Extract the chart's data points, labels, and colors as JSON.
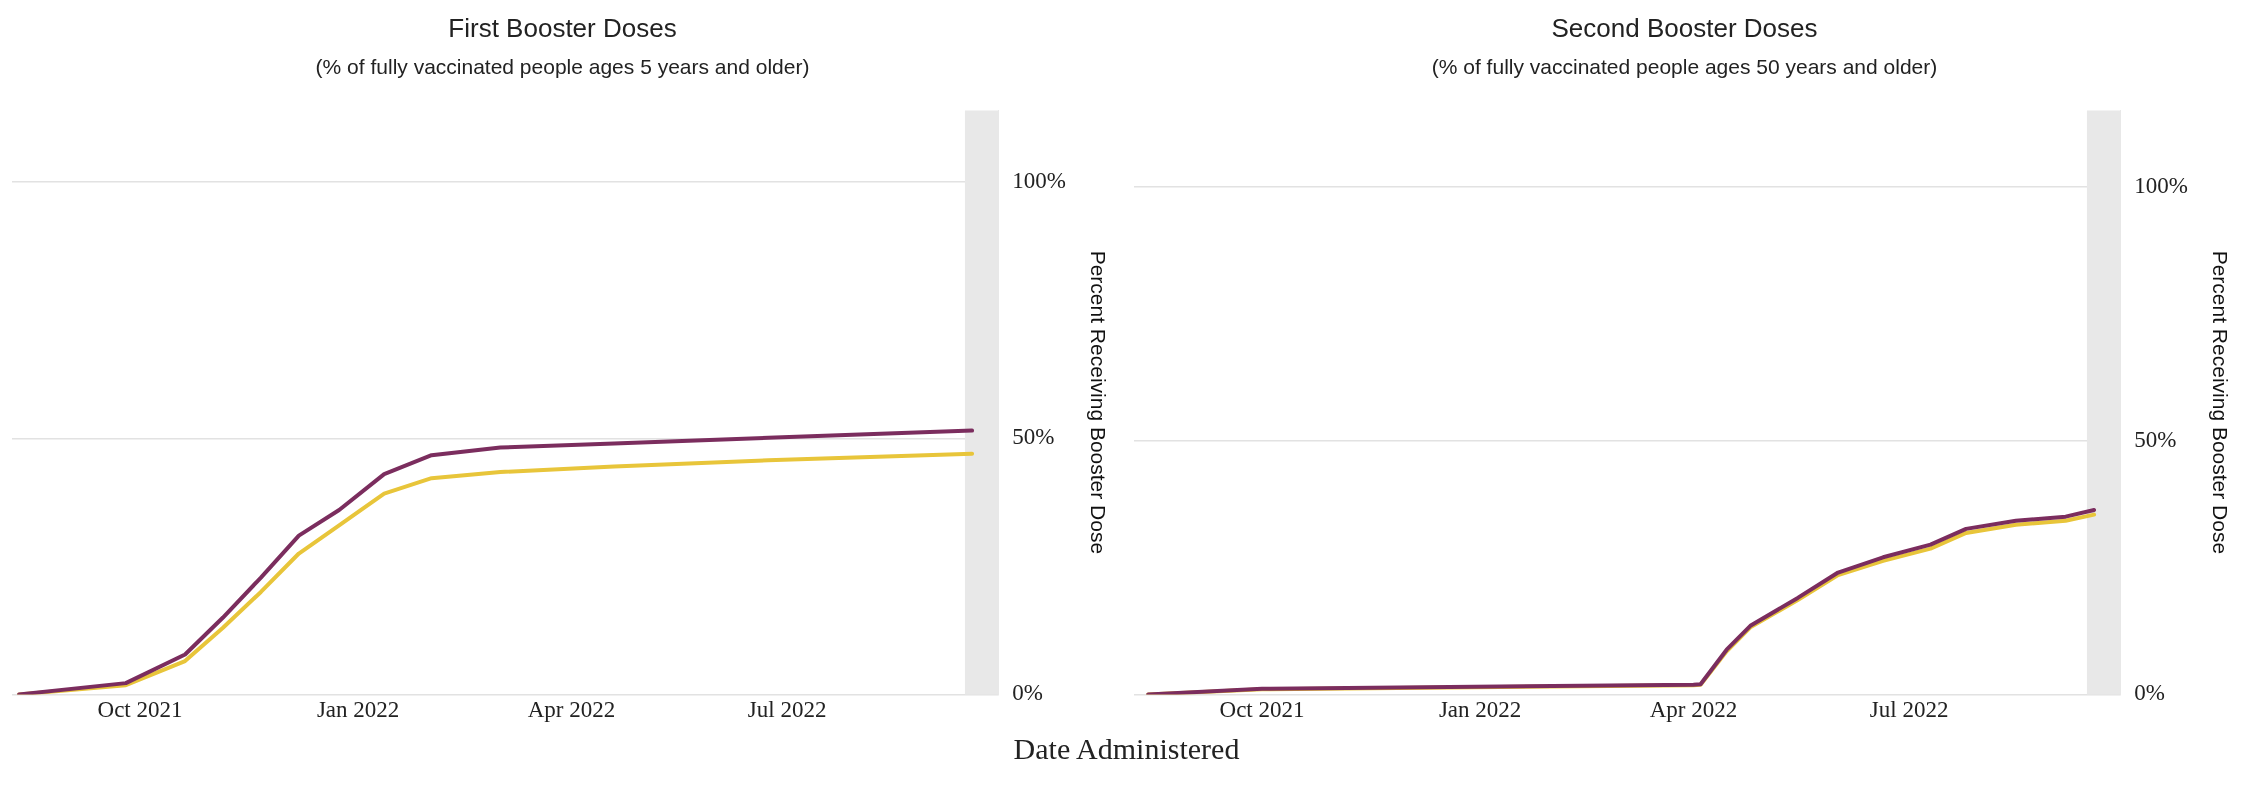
{
  "chart_data": [
    {
      "type": "line",
      "title": "First Booster Doses",
      "subtitle": "(% of fully vaccinated people ages 5 years and older)",
      "xlabel": "Date Administered",
      "ylabel": "Percent Receiving Booster Dose",
      "grid": "y",
      "legend": false,
      "marker": "none",
      "line_style": "solid",
      "xlim": [
        "2021-08-08",
        "2022-09-28"
      ],
      "xticks": [
        {
          "value": "2021-10-01",
          "label": "Oct 2021"
        },
        {
          "value": "2022-01-01",
          "label": "Jan 2022"
        },
        {
          "value": "2022-04-01",
          "label": "Apr 2022"
        },
        {
          "value": "2022-07-01",
          "label": "Jul 2022"
        }
      ],
      "ylim": [
        0,
        114
      ],
      "yticks": [
        {
          "value": 0,
          "label": "0%"
        },
        {
          "value": 50,
          "label": "50%"
        },
        {
          "value": 100,
          "label": "100%"
        }
      ],
      "bands": [
        {
          "axis": "x",
          "from": "2022-09-14",
          "to": "2022-09-28",
          "color": "#e8e8e8"
        }
      ],
      "x": [
        "2021-08-11",
        "2021-09-25",
        "2021-10-20",
        "2021-11-05",
        "2021-11-21",
        "2021-12-07",
        "2021-12-24",
        "2022-01-12",
        "2022-02-01",
        "2022-03-02",
        "2022-04-19",
        "2022-06-23",
        "2022-09-17"
      ],
      "series": [
        {
          "color": "#7b2d5e",
          "values": [
            0,
            2.2,
            7.8,
            15,
            22.8,
            31,
            36,
            43,
            46.7,
            48.2,
            49,
            50.1,
            51.5
          ]
        },
        {
          "color": "#e8c53a",
          "values": [
            0,
            1.8,
            6.5,
            13,
            20,
            27.5,
            33,
            39.2,
            42.2,
            43.4,
            44.5,
            45.7,
            47
          ]
        }
      ]
    },
    {
      "type": "line",
      "title": "Second Booster Doses",
      "subtitle": "(% of fully vaccinated people ages 50 years and older)",
      "ylabel": "Percent Receiving Booster Dose",
      "grid": "y",
      "legend": false,
      "marker": "none",
      "line_style": "solid",
      "xlim": [
        "2021-08-08",
        "2022-09-28"
      ],
      "xticks": [
        {
          "value": "2021-10-01",
          "label": "Oct 2021"
        },
        {
          "value": "2022-01-01",
          "label": "Jan 2022"
        },
        {
          "value": "2022-04-01",
          "label": "Apr 2022"
        },
        {
          "value": "2022-07-01",
          "label": "Jul 2022"
        }
      ],
      "ylim": [
        0,
        115
      ],
      "yticks": [
        {
          "value": 0,
          "label": "0%"
        },
        {
          "value": 50,
          "label": "50%"
        },
        {
          "value": 100,
          "label": "100%"
        }
      ],
      "bands": [
        {
          "axis": "x",
          "from": "2022-09-14",
          "to": "2022-09-28",
          "color": "#e8e8e8"
        }
      ],
      "x": [
        "2021-08-14",
        "2021-10-01",
        "2022-04-01",
        "2022-04-04",
        "2022-04-15",
        "2022-04-25",
        "2022-05-15",
        "2022-06-01",
        "2022-06-20",
        "2022-07-10",
        "2022-07-25",
        "2022-08-15",
        "2022-09-05",
        "2022-09-17"
      ],
      "series": [
        {
          "color": "#7b2d5e",
          "values": [
            0,
            1.1,
            1.9,
            2,
            8.8,
            13.5,
            19,
            24,
            27,
            29.5,
            32.6,
            34.2,
            35,
            36.3
          ]
        },
        {
          "color": "#e8c53a",
          "values": [
            0,
            1,
            1.8,
            1.9,
            8.5,
            13.2,
            18.6,
            23.5,
            26.3,
            28.7,
            31.8,
            33.4,
            34.2,
            35.4
          ]
        }
      ]
    }
  ]
}
